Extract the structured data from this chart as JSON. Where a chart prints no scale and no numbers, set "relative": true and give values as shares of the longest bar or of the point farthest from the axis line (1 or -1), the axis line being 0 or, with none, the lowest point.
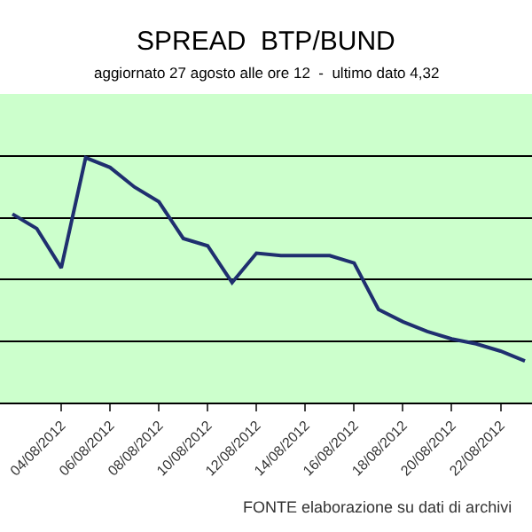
{
  "chart_data": {
    "type": "line",
    "title": "SPREAD  BTP/BUND",
    "subtitle": "aggiornato 27 agosto alle ore 12  -  ultimo dato 4,32",
    "categories": [
      null,
      null,
      "04/08/2012",
      null,
      "06/08/2012",
      null,
      "08/08/2012",
      null,
      "10/08/2012",
      null,
      "12/08/2012",
      null,
      "14/08/2012",
      null,
      "16/08/2012",
      null,
      "18/08/2012",
      null,
      "20/08/2012",
      null,
      "22/08/2012",
      null
    ],
    "series": [
      {
        "color": "#1f2f6f",
        "values": [
          0.77,
          0.71,
          0.55,
          1,
          0.96,
          0.88,
          0.82,
          0.67,
          0.64,
          0.49,
          0.61,
          0.6,
          0.6,
          0.6,
          0.57,
          0.38,
          0.33,
          0.29,
          0.26,
          0.24,
          0.21,
          0.17
        ]
      }
    ],
    "relative": true,
    "grid": "y",
    "marker": "none",
    "line_style": "solid",
    "annotations": [
      "FONTE elaborazione su dati di archivi"
    ]
  }
}
